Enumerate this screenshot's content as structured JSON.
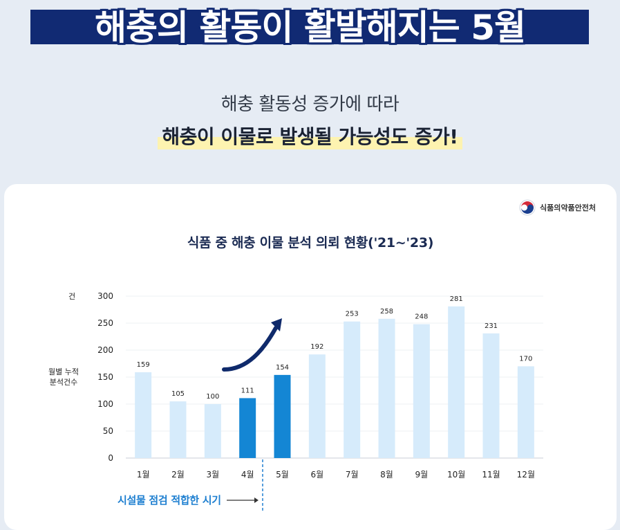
{
  "header": {
    "title": "해충의 활동이 활발해지는 5월",
    "subtitle_line1": "해충 활동성 증가에 따라",
    "subtitle_line2": "해충이 이물로 발생될 가능성도 증가!"
  },
  "card": {
    "org_name": "식품의약품안전처",
    "annotation": "시설물 점검 적합한 시기"
  },
  "colors": {
    "title_band": "#112a73",
    "bar_light": "#d6ebfb",
    "bar_highlight": "#1486d4",
    "arrow": "#0f2a6b",
    "annotation": "#1e7fd0",
    "highlight_marker": "#fdf3b0"
  },
  "chart_data": {
    "type": "bar",
    "title": "식품 중 해충 이물 분석 의뢰 현황('21~'23)",
    "unit_label": "건",
    "ylabel": "월별 누적 분석건수",
    "ylabel_lines": [
      "월별 누적",
      "분석건수"
    ],
    "categories": [
      "1월",
      "2월",
      "3월",
      "4월",
      "5월",
      "6월",
      "7월",
      "8월",
      "9월",
      "10월",
      "11월",
      "12월"
    ],
    "values": [
      159,
      105,
      100,
      111,
      154,
      192,
      253,
      258,
      248,
      281,
      231,
      170
    ],
    "data_labels": [
      "159",
      "105",
      "100",
      "111",
      "154",
      "192",
      "253",
      "258",
      "248",
      "281",
      "231",
      "170"
    ],
    "highlighted": [
      "4월",
      "5월"
    ],
    "ylim": [
      0,
      300
    ],
    "yticks": [
      0,
      50,
      100,
      150,
      200,
      250,
      300
    ],
    "ytick_labels": [
      "0",
      "50",
      "100",
      "150",
      "200",
      "250",
      "300"
    ],
    "grid": true,
    "legend": "none"
  }
}
